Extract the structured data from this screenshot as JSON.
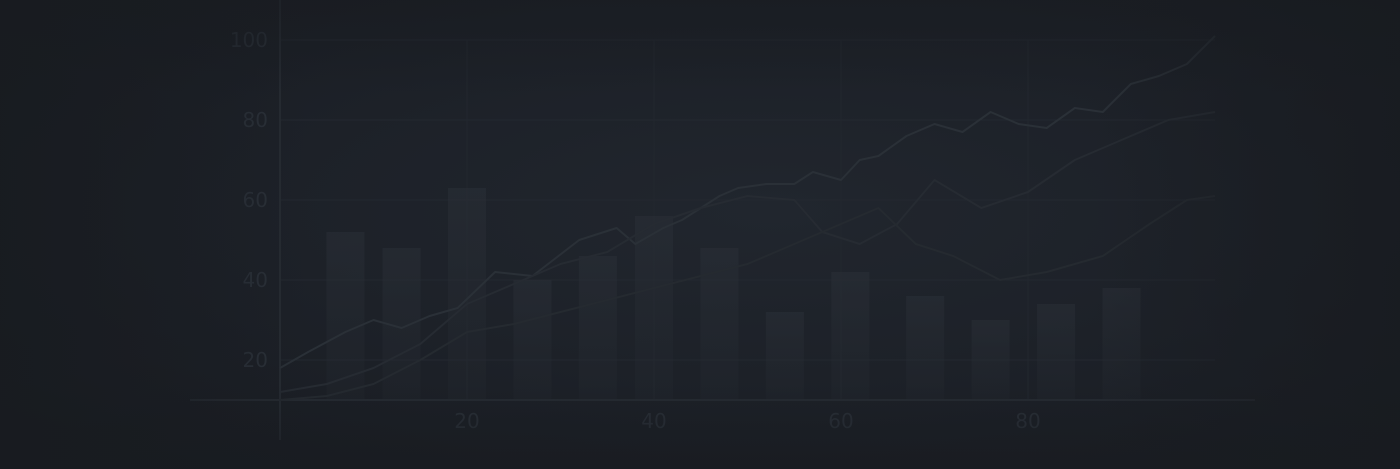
{
  "chart_data": {
    "type": "line",
    "title": "",
    "xlabel": "",
    "ylabel": "",
    "xlim": [
      0,
      100
    ],
    "ylim": [
      10,
      100
    ],
    "grid": true,
    "legend": "none",
    "x_ticks": [
      20,
      40,
      60,
      80
    ],
    "y_ticks": [
      20,
      40,
      60,
      80,
      100
    ],
    "x_tick_labels": [
      "20",
      "40",
      "60",
      "80"
    ],
    "y_tick_labels": [
      "20",
      "40",
      "60",
      "80",
      "100"
    ],
    "bars": {
      "x": [
        7,
        13,
        20,
        27,
        34,
        40,
        47,
        54,
        61,
        69,
        76,
        83,
        90
      ],
      "values": [
        52,
        48,
        63,
        40,
        46,
        56,
        48,
        32,
        42,
        36,
        30,
        34,
        38
      ]
    },
    "series": [
      {
        "color": "#2a3037",
        "x": [
          0,
          3,
          7,
          10,
          13,
          16,
          19,
          23,
          27,
          32,
          36,
          38,
          41,
          43,
          45,
          47,
          49,
          52,
          55,
          57,
          60,
          62,
          64,
          67,
          70,
          73,
          76,
          79,
          82,
          85,
          88,
          91,
          94,
          97,
          100
        ],
        "y": [
          18,
          22,
          27,
          30,
          28,
          31,
          33,
          42,
          41,
          50,
          53,
          49,
          53,
          55,
          58,
          61,
          63,
          64,
          64,
          67,
          65,
          70,
          71,
          76,
          79,
          77,
          82,
          79,
          78,
          83,
          82,
          89,
          91,
          94,
          101
        ]
      },
      {
        "color": "#262b32",
        "x": [
          0,
          5,
          10,
          15,
          20,
          25,
          30,
          35,
          40,
          45,
          50,
          55,
          58,
          62,
          66,
          70,
          75,
          80,
          85,
          90,
          95,
          100
        ],
        "y": [
          12,
          14,
          18,
          24,
          34,
          39,
          44,
          47,
          54,
          58,
          61,
          60,
          52,
          49,
          54,
          65,
          58,
          62,
          70,
          75,
          80,
          82
        ]
      },
      {
        "color": "#252a30",
        "x": [
          0,
          5,
          10,
          15,
          20,
          25,
          30,
          35,
          40,
          45,
          50,
          55,
          60,
          64,
          68,
          72,
          77,
          82,
          88,
          93,
          97,
          100
        ],
        "y": [
          10,
          11,
          14,
          20,
          27,
          29,
          32,
          35,
          38,
          41,
          44,
          49,
          54,
          58,
          49,
          46,
          40,
          42,
          46,
          54,
          60,
          61
        ]
      }
    ]
  }
}
